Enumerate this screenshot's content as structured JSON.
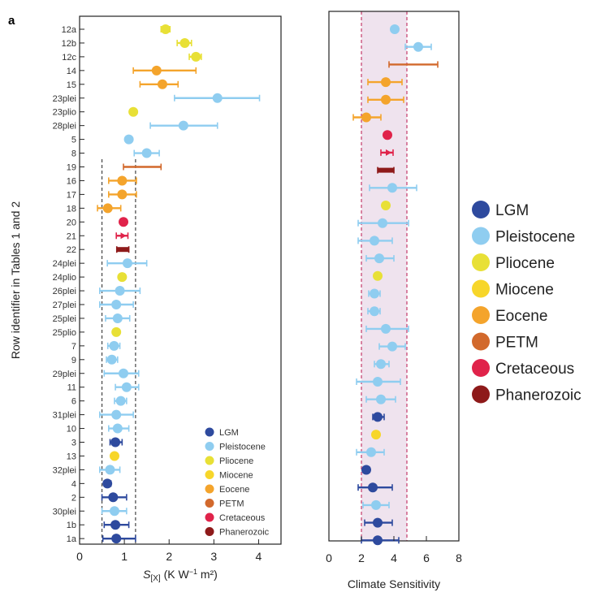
{
  "chart_data": [
    {
      "panel_label": "a",
      "type": "scatter",
      "title": "",
      "xlabel": "S[X] (K W⁻¹ m²)",
      "xlabel_main": "S",
      "xlabel_sub": "[X]",
      "xlabel_units": " (K W",
      "xlabel_exp": "−1",
      "xlabel_tail": " m²)",
      "ylabel": "Row identifier in Tables 1 and 2",
      "xlim": [
        0,
        4.5
      ],
      "xticks": [
        0,
        1,
        2,
        3,
        4
      ],
      "reference_lines": [
        0.5,
        1.25
      ],
      "legend": [
        "LGM",
        "Pleistocene",
        "Pliocene",
        "Miocene",
        "Eocene",
        "PETM",
        "Cretaceous",
        "Phanerozoic"
      ],
      "rows": [
        {
          "label": "12a",
          "era": "Pliocene",
          "mid": 1.92,
          "lo": 1.82,
          "hi": 2.02,
          "marker": "dot"
        },
        {
          "label": "12b",
          "era": "Pliocene",
          "mid": 2.35,
          "lo": 2.18,
          "hi": 2.5,
          "marker": "dot"
        },
        {
          "label": "12c",
          "era": "Pliocene",
          "mid": 2.6,
          "lo": 2.45,
          "hi": 2.72,
          "marker": "dot"
        },
        {
          "label": "14",
          "era": "Eocene",
          "mid": 1.72,
          "lo": 1.2,
          "hi": 2.6,
          "marker": "dot"
        },
        {
          "label": "15",
          "era": "Eocene",
          "mid": 1.85,
          "lo": 1.35,
          "hi": 2.2,
          "marker": "dot"
        },
        {
          "label": "23plei",
          "era": "Pleistocene",
          "mid": 3.08,
          "lo": 2.12,
          "hi": 4.02,
          "marker": "dot"
        },
        {
          "label": "23plio",
          "era": "Pliocene",
          "mid": 1.2,
          "lo": 1.2,
          "hi": 1.2,
          "marker": "dot"
        },
        {
          "label": "28plei",
          "era": "Pleistocene",
          "mid": 2.32,
          "lo": 1.58,
          "hi": 3.08,
          "marker": "dot"
        },
        {
          "label": "5",
          "era": "Pleistocene",
          "mid": 1.1,
          "lo": 1.1,
          "hi": 1.1,
          "marker": "dot"
        },
        {
          "label": "8",
          "era": "Pleistocene",
          "mid": 1.5,
          "lo": 1.22,
          "hi": 1.78,
          "marker": "dot"
        },
        {
          "label": "19",
          "era": "PETM",
          "mid": 1.4,
          "lo": 0.98,
          "hi": 1.82,
          "marker": "none"
        },
        {
          "label": "16",
          "era": "Eocene",
          "mid": 0.95,
          "lo": 0.65,
          "hi": 1.27,
          "marker": "dot"
        },
        {
          "label": "17",
          "era": "Eocene",
          "mid": 0.95,
          "lo": 0.65,
          "hi": 1.27,
          "marker": "dot"
        },
        {
          "label": "18",
          "era": "Eocene",
          "mid": 0.63,
          "lo": 0.4,
          "hi": 0.92,
          "marker": "dot"
        },
        {
          "label": "20",
          "era": "Cretaceous",
          "mid": 0.98,
          "lo": 0.98,
          "hi": 0.98,
          "marker": "dot"
        },
        {
          "label": "21",
          "era": "Cretaceous",
          "mid": 0.95,
          "lo": 0.82,
          "hi": 1.08,
          "marker": "arrow"
        },
        {
          "label": "22",
          "era": "Phanerozoic",
          "mid": 0.97,
          "lo": 0.83,
          "hi": 1.1,
          "marker": "bar"
        },
        {
          "label": "24plei",
          "era": "Pleistocene",
          "mid": 1.07,
          "lo": 0.62,
          "hi": 1.5,
          "marker": "dot"
        },
        {
          "label": "24plio",
          "era": "Pliocene",
          "mid": 0.95,
          "lo": 0.95,
          "hi": 0.95,
          "marker": "dot"
        },
        {
          "label": "26plei",
          "era": "Pleistocene",
          "mid": 0.9,
          "lo": 0.45,
          "hi": 1.35,
          "marker": "dot"
        },
        {
          "label": "27plei",
          "era": "Pleistocene",
          "mid": 0.82,
          "lo": 0.45,
          "hi": 1.2,
          "marker": "dot"
        },
        {
          "label": "25plei",
          "era": "Pleistocene",
          "mid": 0.85,
          "lo": 0.58,
          "hi": 1.12,
          "marker": "dot"
        },
        {
          "label": "25plio",
          "era": "Pliocene",
          "mid": 0.82,
          "lo": 0.82,
          "hi": 0.82,
          "marker": "dot"
        },
        {
          "label": "7",
          "era": "Pleistocene",
          "mid": 0.77,
          "lo": 0.63,
          "hi": 0.9,
          "marker": "dot"
        },
        {
          "label": "9",
          "era": "Pleistocene",
          "mid": 0.72,
          "lo": 0.6,
          "hi": 0.85,
          "marker": "dot"
        },
        {
          "label": "29plei",
          "era": "Pleistocene",
          "mid": 0.98,
          "lo": 0.55,
          "hi": 1.32,
          "marker": "dot"
        },
        {
          "label": "11",
          "era": "Pleistocene",
          "mid": 1.05,
          "lo": 0.8,
          "hi": 1.32,
          "marker": "dot"
        },
        {
          "label": "6",
          "era": "Pleistocene",
          "mid": 0.92,
          "lo": 0.78,
          "hi": 1.05,
          "marker": "dot"
        },
        {
          "label": "31plei",
          "era": "Pleistocene",
          "mid": 0.82,
          "lo": 0.45,
          "hi": 1.2,
          "marker": "dot"
        },
        {
          "label": "10",
          "era": "Pleistocene",
          "mid": 0.85,
          "lo": 0.65,
          "hi": 1.1,
          "marker": "dot"
        },
        {
          "label": "3",
          "era": "LGM",
          "mid": 0.8,
          "lo": 0.68,
          "hi": 0.95,
          "marker": "dot"
        },
        {
          "label": "13",
          "era": "Miocene",
          "mid": 0.78,
          "lo": 0.78,
          "hi": 0.78,
          "marker": "dot"
        },
        {
          "label": "32plei",
          "era": "Pleistocene",
          "mid": 0.68,
          "lo": 0.45,
          "hi": 0.9,
          "marker": "dot"
        },
        {
          "label": "4",
          "era": "LGM",
          "mid": 0.62,
          "lo": 0.55,
          "hi": 0.7,
          "marker": "dot"
        },
        {
          "label": "2",
          "era": "LGM",
          "mid": 0.75,
          "lo": 0.5,
          "hi": 1.05,
          "marker": "dot"
        },
        {
          "label": "30plei",
          "era": "Pleistocene",
          "mid": 0.78,
          "lo": 0.5,
          "hi": 1.05,
          "marker": "dot"
        },
        {
          "label": "1b",
          "era": "LGM",
          "mid": 0.8,
          "lo": 0.55,
          "hi": 1.1,
          "marker": "dot"
        },
        {
          "label": "1a",
          "era": "LGM",
          "mid": 0.82,
          "lo": 0.52,
          "hi": 1.25,
          "marker": "dot"
        }
      ]
    },
    {
      "type": "scatter",
      "title": "",
      "xlabel": "Climate Sensitivity",
      "ylabel": "",
      "xlim": [
        0,
        8
      ],
      "xticks": [
        0,
        2,
        4,
        6,
        8
      ],
      "shaded_band": [
        2.0,
        4.8
      ],
      "legend": [
        "LGM",
        "Pleistocene",
        "Pliocene",
        "Miocene",
        "Eocene",
        "PETM",
        "Cretaceous",
        "Phanerozoic"
      ],
      "rows": [
        {
          "era": "Pleistocene",
          "mid": 4.05,
          "lo": 4.05,
          "hi": 4.05,
          "marker": "dot"
        },
        {
          "era": "Pleistocene",
          "mid": 5.5,
          "lo": 4.7,
          "hi": 6.3,
          "marker": "dot"
        },
        {
          "era": "PETM",
          "mid": 5.2,
          "lo": 3.7,
          "hi": 6.7,
          "marker": "none"
        },
        {
          "era": "Eocene",
          "mid": 3.5,
          "lo": 2.4,
          "hi": 4.5,
          "marker": "dot"
        },
        {
          "era": "Eocene",
          "mid": 3.5,
          "lo": 2.4,
          "hi": 4.6,
          "marker": "dot"
        },
        {
          "era": "Eocene",
          "mid": 2.3,
          "lo": 1.5,
          "hi": 3.2,
          "marker": "dot"
        },
        {
          "era": "Cretaceous",
          "mid": 3.6,
          "lo": 3.6,
          "hi": 3.6,
          "marker": "dot"
        },
        {
          "era": "Cretaceous",
          "mid": 3.5,
          "lo": 3.2,
          "hi": 3.95,
          "marker": "arrow"
        },
        {
          "era": "Phanerozoic",
          "mid": 3.5,
          "lo": 3.0,
          "hi": 4.0,
          "marker": "bar"
        },
        {
          "era": "Pleistocene",
          "mid": 3.9,
          "lo": 2.5,
          "hi": 5.4,
          "marker": "dot"
        },
        {
          "era": "Pliocene",
          "mid": 3.5,
          "lo": 3.5,
          "hi": 3.5,
          "marker": "dot"
        },
        {
          "era": "Pleistocene",
          "mid": 3.3,
          "lo": 1.8,
          "hi": 4.9,
          "marker": "dot"
        },
        {
          "era": "Pleistocene",
          "mid": 2.8,
          "lo": 1.8,
          "hi": 3.9,
          "marker": "dot"
        },
        {
          "era": "Pleistocene",
          "mid": 3.1,
          "lo": 2.3,
          "hi": 4.0,
          "marker": "dot"
        },
        {
          "era": "Pliocene",
          "mid": 3.0,
          "lo": 3.0,
          "hi": 3.0,
          "marker": "dot"
        },
        {
          "era": "Pleistocene",
          "mid": 2.8,
          "lo": 2.45,
          "hi": 3.15,
          "marker": "dot"
        },
        {
          "era": "Pleistocene",
          "mid": 2.8,
          "lo": 2.4,
          "hi": 3.15,
          "marker": "dot"
        },
        {
          "era": "Pleistocene",
          "mid": 3.5,
          "lo": 2.3,
          "hi": 4.9,
          "marker": "dot"
        },
        {
          "era": "Pleistocene",
          "mid": 3.9,
          "lo": 3.1,
          "hi": 4.7,
          "marker": "dot"
        },
        {
          "era": "Pleistocene",
          "mid": 3.2,
          "lo": 2.8,
          "hi": 3.7,
          "marker": "dot"
        },
        {
          "era": "Pleistocene",
          "mid": 3.0,
          "lo": 1.7,
          "hi": 4.4,
          "marker": "dot"
        },
        {
          "era": "Pleistocene",
          "mid": 3.2,
          "lo": 2.3,
          "hi": 4.1,
          "marker": "dot"
        },
        {
          "era": "LGM",
          "mid": 3.0,
          "lo": 2.7,
          "hi": 3.4,
          "marker": "dot"
        },
        {
          "era": "Miocene",
          "mid": 2.9,
          "lo": 2.9,
          "hi": 2.9,
          "marker": "dot"
        },
        {
          "era": "Pleistocene",
          "mid": 2.6,
          "lo": 1.7,
          "hi": 3.4,
          "marker": "dot"
        },
        {
          "era": "LGM",
          "mid": 2.3,
          "lo": 2.1,
          "hi": 2.5,
          "marker": "dot"
        },
        {
          "era": "LGM",
          "mid": 2.7,
          "lo": 1.8,
          "hi": 3.9,
          "marker": "dot"
        },
        {
          "era": "Pleistocene",
          "mid": 2.9,
          "lo": 2.1,
          "hi": 3.7,
          "marker": "dot"
        },
        {
          "era": "LGM",
          "mid": 3.0,
          "lo": 2.2,
          "hi": 3.9,
          "marker": "dot"
        },
        {
          "era": "LGM",
          "mid": 3.0,
          "lo": 2.0,
          "hi": 4.3,
          "marker": "dot"
        }
      ]
    }
  ],
  "colors": {
    "LGM": "#2e4a9e",
    "Pleistocene": "#8fcdf0",
    "Pliocene": "#e8e036",
    "Miocene": "#f7d62a",
    "Eocene": "#f4a42c",
    "PETM": "#d2692c",
    "Cretaceous": "#e0234a",
    "Phanerozoic": "#8e1a1a",
    "band_fill": "#efe3ee",
    "band_edge": "#c43a6a",
    "ref_line": "#444444"
  }
}
